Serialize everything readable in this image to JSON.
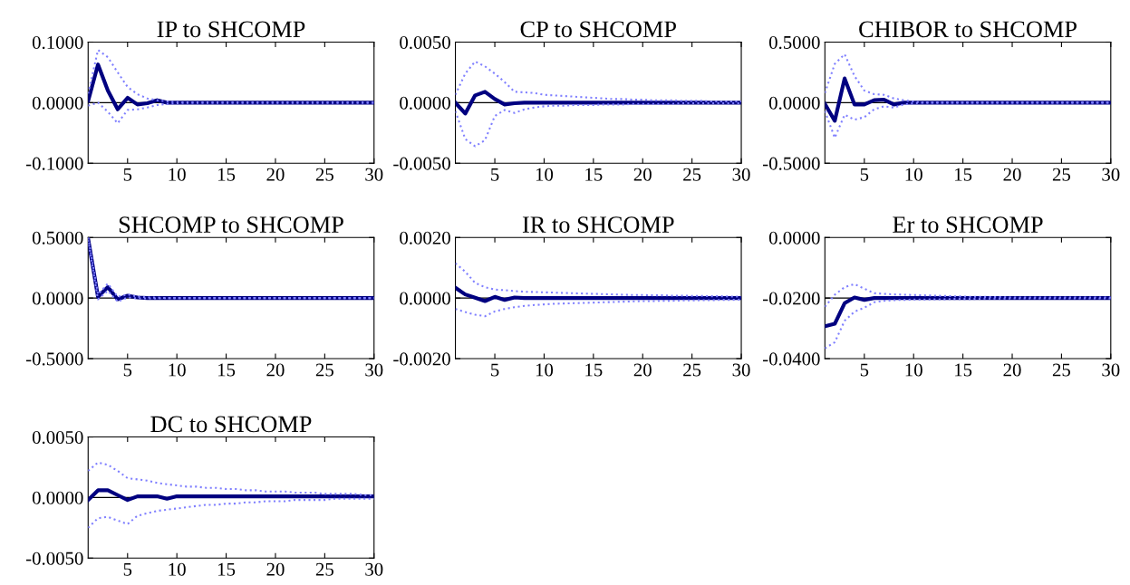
{
  "chart_data": [
    {
      "type": "line",
      "title": "IP to SHCOMP",
      "x": [
        1,
        2,
        3,
        4,
        5,
        6,
        7,
        8,
        9,
        10,
        11,
        12,
        13,
        14,
        15,
        16,
        17,
        18,
        19,
        20,
        21,
        22,
        23,
        24,
        25,
        26,
        27,
        28,
        29,
        30
      ],
      "xlim": [
        1,
        30
      ],
      "xticks": [
        5,
        10,
        15,
        20,
        25,
        30
      ],
      "ylim": [
        -0.1,
        0.1
      ],
      "yticks": [
        {
          "value": -0.1,
          "label": "-0.1000"
        },
        {
          "value": 0,
          "label": "0.0000"
        },
        {
          "value": 0.1,
          "label": "0.1000"
        }
      ],
      "ref_lines": [
        {
          "axis": "y",
          "value": 0,
          "color": "#000000"
        }
      ],
      "series": [
        {
          "color": "#8080ff",
          "line_style": "dotted",
          "values": [
            0.015,
            0.087,
            0.075,
            0.05,
            0.026,
            0.014,
            0.007,
            0.004,
            0.002,
            0.001,
            0,
            0,
            0,
            0,
            0,
            0,
            0,
            0,
            0,
            0,
            0,
            0,
            0,
            0,
            0,
            0,
            0,
            0,
            0,
            0
          ]
        },
        {
          "color": "#8080ff",
          "line_style": "dotted",
          "values": [
            -0.005,
            0,
            -0.015,
            -0.034,
            -0.012,
            -0.011,
            -0.008,
            -0.004,
            -0.002,
            -0.001,
            0,
            0,
            0,
            0,
            0,
            0,
            0,
            0,
            0,
            0,
            0,
            0,
            0,
            0,
            0,
            0,
            0,
            0,
            0,
            0
          ]
        },
        {
          "color": "#000080",
          "line_style": "solid",
          "values": [
            0.003,
            0.063,
            0.02,
            -0.011,
            0.008,
            -0.003,
            -0.001,
            0.004,
            0,
            0,
            0,
            0,
            0,
            0,
            0,
            0,
            0,
            0,
            0,
            0,
            0,
            0,
            0,
            0,
            0,
            0,
            0,
            0,
            0,
            0
          ]
        }
      ]
    },
    {
      "type": "line",
      "title": "CP to SHCOMP",
      "x": [
        1,
        2,
        3,
        4,
        5,
        6,
        7,
        8,
        9,
        10,
        11,
        12,
        13,
        14,
        15,
        16,
        17,
        18,
        19,
        20,
        21,
        22,
        23,
        24,
        25,
        26,
        27,
        28,
        29,
        30
      ],
      "xlim": [
        1,
        30
      ],
      "xticks": [
        5,
        10,
        15,
        20,
        25,
        30
      ],
      "ylim": [
        -0.005,
        0.005
      ],
      "yticks": [
        {
          "value": -0.005,
          "label": "-0.0050"
        },
        {
          "value": 0,
          "label": "0.0000"
        },
        {
          "value": 0.005,
          "label": "0.0050"
        }
      ],
      "ref_lines": [
        {
          "axis": "y",
          "value": 0,
          "color": "#000000"
        }
      ],
      "series": [
        {
          "color": "#8080ff",
          "line_style": "dotted",
          "values": [
            0.00065,
            0.0024,
            0.0034,
            0.003,
            0.0024,
            0.0017,
            0.0009,
            0.00085,
            0.0008,
            0.00065,
            0.0006,
            0.00055,
            0.0005,
            0.00045,
            0.0004,
            0.00035,
            0.0003,
            0.0003,
            0.00025,
            0.00025,
            0.0002,
            0.0002,
            0.0002,
            0.00015,
            0.00015,
            0.00015,
            0.0001,
            0.0001,
            0.0001,
            0.0001
          ]
        },
        {
          "color": "#8080ff",
          "line_style": "dotted",
          "values": [
            -0.0007,
            -0.003,
            -0.0036,
            -0.0031,
            -0.0011,
            -0.0006,
            -0.00085,
            -0.00055,
            -0.0004,
            -0.0003,
            -0.00025,
            -0.00025,
            -0.0002,
            -0.0002,
            -0.0002,
            -0.00015,
            -0.00015,
            -0.00015,
            -0.0001,
            -0.0001,
            -0.0001,
            -0.0001,
            -0.0001,
            -5e-05,
            -5e-05,
            -5e-05,
            -5e-05,
            -5e-05,
            -5e-05,
            -5e-05
          ]
        },
        {
          "color": "#000080",
          "line_style": "solid",
          "values": [
            0,
            -0.0009,
            0.0006,
            0.0009,
            0.0003,
            -0.00015,
            -5e-05,
            0,
            0,
            0,
            0,
            0,
            0,
            0,
            0,
            0,
            0,
            0,
            0,
            0,
            0,
            0,
            0,
            0,
            0,
            0,
            0,
            0,
            0,
            0
          ]
        }
      ]
    },
    {
      "type": "line",
      "title": "CHIBOR to SHCOMP",
      "x": [
        1,
        2,
        3,
        4,
        5,
        6,
        7,
        8,
        9,
        10,
        11,
        12,
        13,
        14,
        15,
        16,
        17,
        18,
        19,
        20,
        21,
        22,
        23,
        24,
        25,
        26,
        27,
        28,
        29,
        30
      ],
      "xlim": [
        1,
        30
      ],
      "xticks": [
        5,
        10,
        15,
        20,
        25,
        30
      ],
      "ylim": [
        -0.5,
        0.5
      ],
      "yticks": [
        {
          "value": -0.5,
          "label": "-0.5000"
        },
        {
          "value": 0,
          "label": "0.0000"
        },
        {
          "value": 0.5,
          "label": "0.5000"
        }
      ],
      "ref_lines": [
        {
          "axis": "y",
          "value": 0,
          "color": "#000000"
        }
      ],
      "series": [
        {
          "color": "#8080ff",
          "line_style": "dotted",
          "values": [
            0.08,
            0.32,
            0.4,
            0.22,
            0.1,
            0.07,
            0.065,
            0.035,
            0.02,
            0.01,
            0,
            0,
            0,
            0,
            0,
            0,
            0,
            0,
            0,
            0,
            0,
            0,
            0,
            0,
            0,
            0,
            0,
            0,
            0,
            0
          ]
        },
        {
          "color": "#8080ff",
          "line_style": "dotted",
          "values": [
            -0.07,
            -0.29,
            -0.1,
            -0.14,
            -0.12,
            -0.055,
            -0.03,
            -0.04,
            -0.015,
            -0.005,
            0,
            0,
            0,
            0,
            0,
            0,
            0,
            0,
            0,
            0,
            0,
            0,
            0,
            0,
            0,
            0,
            0,
            0,
            0,
            0
          ]
        },
        {
          "color": "#000080",
          "line_style": "solid",
          "values": [
            -0.01,
            -0.15,
            0.2,
            -0.015,
            -0.015,
            0.02,
            0.025,
            -0.015,
            0,
            0,
            0,
            0,
            0,
            0,
            0,
            0,
            0,
            0,
            0,
            0,
            0,
            0,
            0,
            0,
            0,
            0,
            0,
            0,
            0,
            0
          ]
        }
      ]
    },
    {
      "type": "line",
      "title": "SHCOMP to SHCOMP",
      "x": [
        1,
        2,
        3,
        4,
        5,
        6,
        7,
        8,
        9,
        10,
        11,
        12,
        13,
        14,
        15,
        16,
        17,
        18,
        19,
        20,
        21,
        22,
        23,
        24,
        25,
        26,
        27,
        28,
        29,
        30
      ],
      "xlim": [
        1,
        30
      ],
      "xticks": [
        5,
        10,
        15,
        20,
        25,
        30
      ],
      "ylim": [
        -0.5,
        0.5
      ],
      "yticks": [
        {
          "value": -0.5,
          "label": "-0.5000"
        },
        {
          "value": 0,
          "label": "0.0000"
        },
        {
          "value": 0.5,
          "label": "0.5000"
        }
      ],
      "ref_lines": [
        {
          "axis": "y",
          "value": 0,
          "color": "#000000"
        }
      ],
      "series": [
        {
          "color": "#8080ff",
          "line_style": "dotted",
          "values": [
            0.5,
            0.03,
            0.12,
            0.01,
            0.03,
            0.012,
            0.005,
            0.003,
            0,
            0,
            0,
            0,
            0,
            0,
            0,
            0,
            0,
            0,
            0,
            0,
            0,
            0,
            0,
            0,
            0,
            0,
            0,
            0,
            0,
            0
          ]
        },
        {
          "color": "#8080ff",
          "line_style": "dotted",
          "values": [
            0.48,
            -0.01,
            0.06,
            -0.03,
            0.005,
            -0.003,
            -0.003,
            -0.002,
            0,
            0,
            0,
            0,
            0,
            0,
            0,
            0,
            0,
            0,
            0,
            0,
            0,
            0,
            0,
            0,
            0,
            0,
            0,
            0,
            0,
            0
          ]
        },
        {
          "color": "#000080",
          "line_style": "solid",
          "values": [
            0.49,
            0.01,
            0.09,
            -0.01,
            0.02,
            0.005,
            0,
            0,
            0,
            0,
            0,
            0,
            0,
            0,
            0,
            0,
            0,
            0,
            0,
            0,
            0,
            0,
            0,
            0,
            0,
            0,
            0,
            0,
            0,
            0
          ]
        }
      ]
    },
    {
      "type": "line",
      "title": "IR to SHCOMP",
      "x": [
        1,
        2,
        3,
        4,
        5,
        6,
        7,
        8,
        9,
        10,
        11,
        12,
        13,
        14,
        15,
        16,
        17,
        18,
        19,
        20,
        21,
        22,
        23,
        24,
        25,
        26,
        27,
        28,
        29,
        30
      ],
      "xlim": [
        1,
        30
      ],
      "xticks": [
        5,
        10,
        15,
        20,
        25,
        30
      ],
      "ylim": [
        -0.002,
        0.002
      ],
      "yticks": [
        {
          "value": -0.002,
          "label": "-0.0020"
        },
        {
          "value": 0,
          "label": "0.0000"
        },
        {
          "value": 0.002,
          "label": "0.0020"
        }
      ],
      "ref_lines": [
        {
          "axis": "y",
          "value": 0,
          "color": "#000000"
        }
      ],
      "series": [
        {
          "color": "#8080ff",
          "line_style": "dotted",
          "values": [
            0.00115,
            0.00087,
            0.0005,
            0.00036,
            0.00028,
            0.00026,
            0.00023,
            0.00021,
            0.0002,
            0.00019,
            0.00018,
            0.00017,
            0.00016,
            0.00015,
            0.00014,
            0.00013,
            0.00012,
            0.00011,
            0.0001,
            0.0001,
            9e-05,
            9e-05,
            8e-05,
            8e-05,
            7e-05,
            7e-05,
            6e-05,
            6e-05,
            5e-05,
            5e-05
          ]
        },
        {
          "color": "#8080ff",
          "line_style": "dotted",
          "values": [
            -0.00036,
            -0.00046,
            -0.00055,
            -0.0006,
            -0.00044,
            -0.00036,
            -0.0003,
            -0.00026,
            -0.00023,
            -0.00021,
            -0.00019,
            -0.00018,
            -0.00017,
            -0.00016,
            -0.00015,
            -0.00014,
            -0.00013,
            -0.00012,
            -0.00011,
            -0.0001,
            -0.0001,
            -9e-05,
            -9e-05,
            -8e-05,
            -8e-05,
            -7e-05,
            -7e-05,
            -6e-05,
            -6e-05,
            -5e-05
          ]
        },
        {
          "color": "#000080",
          "line_style": "solid",
          "values": [
            0.00034,
            0.00012,
            1e-05,
            -0.0001,
            4e-05,
            -6e-05,
            2e-05,
            0,
            0,
            0,
            0,
            0,
            0,
            0,
            0,
            0,
            0,
            0,
            0,
            0,
            0,
            0,
            0,
            0,
            0,
            0,
            0,
            0,
            0,
            0
          ]
        }
      ]
    },
    {
      "type": "line",
      "title": "Er to SHCOMP",
      "x": [
        1,
        2,
        3,
        4,
        5,
        6,
        7,
        8,
        9,
        10,
        11,
        12,
        13,
        14,
        15,
        16,
        17,
        18,
        19,
        20,
        21,
        22,
        23,
        24,
        25,
        26,
        27,
        28,
        29,
        30
      ],
      "xlim": [
        1,
        30
      ],
      "xticks": [
        5,
        10,
        15,
        20,
        25,
        30
      ],
      "ylim": [
        -0.04,
        0
      ],
      "yticks": [
        {
          "value": -0.04,
          "label": "-0.0400"
        },
        {
          "value": -0.02,
          "label": "-0.0200"
        },
        {
          "value": 0,
          "label": "0.0000"
        }
      ],
      "ref_lines": [
        {
          "axis": "y",
          "value": -0.02,
          "color": "#000000"
        }
      ],
      "series": [
        {
          "color": "#8080ff",
          "line_style": "dotted",
          "values": [
            -0.0229,
            -0.0189,
            -0.0164,
            -0.0154,
            -0.0169,
            -0.0184,
            -0.0186,
            -0.0188,
            -0.0189,
            -0.019,
            -0.0191,
            -0.0192,
            -0.0193,
            -0.0194,
            -0.0195,
            -0.0196,
            -0.0196,
            -0.0197,
            -0.0197,
            -0.0198,
            -0.0198,
            -0.0198,
            -0.0198,
            -0.0198,
            -0.0198,
            -0.0198,
            -0.0198,
            -0.0198,
            -0.0198,
            -0.0198
          ]
        },
        {
          "color": "#8080ff",
          "line_style": "dotted",
          "values": [
            -0.0366,
            -0.0346,
            -0.0275,
            -0.0245,
            -0.0232,
            -0.0214,
            -0.0209,
            -0.0207,
            -0.0206,
            -0.0205,
            -0.0205,
            -0.0204,
            -0.0204,
            -0.0203,
            -0.0203,
            -0.0203,
            -0.0202,
            -0.0202,
            -0.0202,
            -0.0201,
            -0.0201,
            -0.0201,
            -0.0201,
            -0.0201,
            -0.0201,
            -0.0201,
            -0.0201,
            -0.0201,
            -0.0201,
            -0.0201
          ]
        },
        {
          "color": "#000080",
          "line_style": "solid",
          "values": [
            -0.0293,
            -0.0285,
            -0.0217,
            -0.0198,
            -0.0206,
            -0.02,
            -0.02,
            -0.02,
            -0.02,
            -0.02,
            -0.02,
            -0.02,
            -0.02,
            -0.02,
            -0.02,
            -0.02,
            -0.02,
            -0.02,
            -0.02,
            -0.02,
            -0.02,
            -0.02,
            -0.02,
            -0.02,
            -0.02,
            -0.02,
            -0.02,
            -0.02,
            -0.02,
            -0.02
          ]
        }
      ]
    },
    {
      "type": "line",
      "title": "DC to SHCOMP",
      "x": [
        1,
        2,
        3,
        4,
        5,
        6,
        7,
        8,
        9,
        10,
        11,
        12,
        13,
        14,
        15,
        16,
        17,
        18,
        19,
        20,
        21,
        22,
        23,
        24,
        25,
        26,
        27,
        28,
        29,
        30
      ],
      "xlim": [
        1,
        30
      ],
      "xticks": [
        5,
        10,
        15,
        20,
        25,
        30
      ],
      "ylim": [
        -0.005,
        0.005
      ],
      "yticks": [
        {
          "value": -0.005,
          "label": "-0.0050"
        },
        {
          "value": 0,
          "label": "0.0000"
        },
        {
          "value": 0.005,
          "label": "0.0050"
        }
      ],
      "ref_lines": [
        {
          "axis": "y",
          "value": 0,
          "color": "#000000"
        }
      ],
      "series": [
        {
          "color": "#8080ff",
          "line_style": "dotted",
          "values": [
            0.0022,
            0.0029,
            0.0027,
            0.0022,
            0.0016,
            0.0015,
            0.0014,
            0.0012,
            0.0011,
            0.001,
            0.0009,
            0.0009,
            0.0008,
            0.0008,
            0.0007,
            0.0007,
            0.0006,
            0.0006,
            0.0005,
            0.0005,
            0.0005,
            0.0004,
            0.0004,
            0.0004,
            0.0003,
            0.0003,
            0.0003,
            0.0003,
            0.0002,
            0.0002
          ]
        },
        {
          "color": "#8080ff",
          "line_style": "dotted",
          "values": [
            -0.0025,
            -0.0017,
            -0.0016,
            -0.0019,
            -0.0022,
            -0.0015,
            -0.0013,
            -0.0011,
            -0.001,
            -0.0009,
            -0.0008,
            -0.0007,
            -0.0006,
            -0.0006,
            -0.0005,
            -0.0005,
            -0.0004,
            -0.0004,
            -0.0003,
            -0.0003,
            -0.0003,
            -0.0002,
            -0.0002,
            -0.0002,
            -0.0002,
            -0.0001,
            -0.0001,
            -0.0001,
            -0.0001,
            -0.0001
          ]
        },
        {
          "color": "#000080",
          "line_style": "solid",
          "values": [
            -0.0002,
            0.0006,
            0.0006,
            0.0002,
            -0.0002,
            0.0001,
            0.0001,
            0.0001,
            -0.0001,
            0.0001,
            0.0001,
            0.0001,
            0.0001,
            0.0001,
            0.0001,
            0.0001,
            0.0001,
            0.0001,
            0.0001,
            0.0001,
            0.0001,
            0.0001,
            0.0001,
            0.0001,
            0.0001,
            0.0001,
            0.0001,
            0.0001,
            0.0001,
            0.0001
          ]
        }
      ]
    }
  ]
}
